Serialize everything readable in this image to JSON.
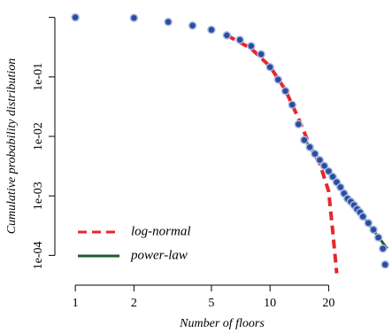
{
  "chart_data": {
    "type": "scatter",
    "x_label": "Number of floors",
    "y_label": "Cumulative probability distribution",
    "log_x": true,
    "log_y": true,
    "xlim": [
      0.785,
      41
    ],
    "ylim": [
      4.3e-05,
      1.3
    ],
    "xticks": [
      1,
      2,
      5,
      10,
      20
    ],
    "yticks": [
      {
        "value": 1,
        "label": null
      },
      {
        "value": 0.1,
        "label": "1e-01"
      },
      {
        "value": 0.01,
        "label": "1e-02"
      },
      {
        "value": 0.001,
        "label": "1e-03"
      },
      {
        "value": 0.0001,
        "label": "1e-04"
      }
    ],
    "points": {
      "color": "#2a4d9e",
      "edge": "#a9b9e3",
      "x": [
        1,
        2,
        3,
        4,
        5,
        6,
        7,
        8,
        9,
        10,
        11,
        12,
        13,
        14,
        15,
        16,
        17,
        18,
        19,
        20,
        21,
        22,
        23,
        24,
        25,
        26,
        27,
        28,
        29,
        30,
        32,
        34,
        36,
        38,
        39
      ],
      "values": [
        1,
        0.98,
        0.84,
        0.73,
        0.62,
        0.5,
        0.42,
        0.33,
        0.24,
        0.146,
        0.09,
        0.058,
        0.034,
        0.016,
        0.0087,
        0.0066,
        0.0051,
        0.004,
        0.0032,
        0.0026,
        0.0021,
        0.0017,
        0.0014,
        0.0011,
        0.0009,
        0.0008,
        0.0007,
        0.0006,
        0.00053,
        0.00045,
        0.00035,
        0.00027,
        0.0002,
        0.00013,
        7e-05
      ]
    },
    "fits": [
      {
        "name": "log-normal",
        "color": "#e8262a",
        "dashed": true,
        "x": [
          6,
          8,
          10,
          12,
          14,
          16,
          18,
          20,
          21,
          22
        ],
        "values": [
          0.5,
          0.3,
          0.15,
          0.06,
          0.02,
          0.007,
          0.0035,
          0.0012,
          0.00025,
          5e-05
        ]
      },
      {
        "name": "power-law",
        "color": "#1e5c2a",
        "dashed": false,
        "x": [
          15,
          40
        ],
        "values": [
          0.009,
          0.00013
        ]
      }
    ],
    "legend": "bottom-left"
  }
}
